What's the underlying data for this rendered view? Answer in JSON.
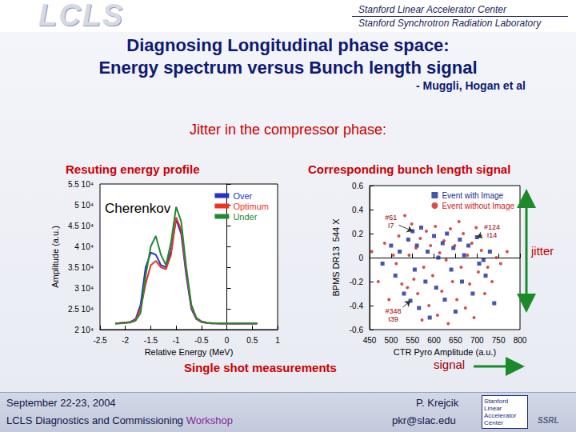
{
  "header": {
    "logo": "LCLS",
    "institution_1": "Stanford Linear Accelerator Center",
    "institution_2": "Stanford Synchrotron Radiation Laboratory"
  },
  "title_lines": [
    "Diagnosing Longitudinal phase space:",
    "Energy spectrum versus Bunch length signal"
  ],
  "authors": "- Muggli, Hogan et al",
  "subtitle": "Jitter in the compressor phase:",
  "notes": {
    "jitter": "jitter",
    "signal": "signal",
    "single_shot": "Single shot measurements"
  },
  "footer": {
    "date": "September 22-23, 2004",
    "event": "LCLS Diagnostics and Commissioning",
    "event_highlight": "Workshop",
    "author": "P. Krejcik",
    "email": "pkr@slac.edu",
    "logo_1": "Stanford Linear Accelerator Center",
    "logo_2": "SSRL"
  },
  "chart_data": [
    {
      "type": "line",
      "title": "Resuting energy profile",
      "annotation": "Cherenkov",
      "x_label": "Relative Energy (MeV)",
      "y_label": "Amplitude (a.u.)",
      "xlim": [
        -2.5,
        1
      ],
      "xticks": [
        -2.5,
        -2,
        -1.5,
        -1,
        -0.5,
        0,
        0.5,
        1
      ],
      "ylim": [
        20000,
        55000
      ],
      "yticks": [
        {
          "value": 20000,
          "label": "2 10⁴"
        },
        {
          "value": 25000,
          "label": "2.5 10⁴"
        },
        {
          "value": 30000,
          "label": "3 10⁴"
        },
        {
          "value": 35000,
          "label": "3.5 10⁴"
        },
        {
          "value": 40000,
          "label": "4 10⁴"
        },
        {
          "value": 45000,
          "label": "4.5 10⁴"
        },
        {
          "value": 50000,
          "label": "5 10⁴"
        },
        {
          "value": 55000,
          "label": "5.5 10⁴"
        }
      ],
      "grid": false,
      "legend": "upper right",
      "x": [
        -2.2,
        -2.1,
        -2.0,
        -1.9,
        -1.8,
        -1.7,
        -1.6,
        -1.5,
        -1.4,
        -1.3,
        -1.2,
        -1.1,
        -1.0,
        -0.9,
        -0.8,
        -0.7,
        -0.6,
        -0.5,
        -0.4,
        -0.3,
        -0.2,
        -0.1,
        0.0,
        0.1,
        0.2,
        0.3,
        0.4,
        0.5,
        0.6
      ],
      "series": [
        {
          "name": "Over",
          "color": "#2233cc",
          "line_style": "solid",
          "values": [
            21500,
            21600,
            21700,
            21900,
            22500,
            26000,
            35000,
            38500,
            38000,
            35500,
            35000,
            39000,
            46500,
            43000,
            33000,
            25000,
            22500,
            21800,
            21600,
            21500,
            21500,
            21400,
            21500,
            21500,
            21400,
            21500,
            21500,
            21400,
            21500
          ]
        },
        {
          "name": "Optimum",
          "color": "#ee3322",
          "line_style": "solid",
          "values": [
            21500,
            21600,
            21700,
            21800,
            22300,
            25000,
            31000,
            35500,
            36500,
            35000,
            34500,
            38000,
            47000,
            44000,
            34000,
            25500,
            22600,
            21900,
            21600,
            21500,
            21500,
            21500,
            21400,
            21500,
            21500,
            21400,
            21500,
            21500,
            21400
          ]
        },
        {
          "name": "Under",
          "color": "#228833",
          "line_style": "solid",
          "values": [
            21400,
            21500,
            21600,
            21700,
            22100,
            24000,
            33000,
            40000,
            42500,
            38000,
            35500,
            41000,
            49500,
            46000,
            35000,
            26000,
            22800,
            22000,
            21700,
            21600,
            21500,
            21500,
            21500,
            21400,
            21500,
            21500,
            21400,
            21500,
            21500
          ]
        }
      ]
    },
    {
      "type": "scatter",
      "title": "Corresponding bunch length signal",
      "x_label": "CTR Pyro Amplitude (a.u.)",
      "y_label": "BPMS DR13  544 X",
      "xlim": [
        450,
        800
      ],
      "xticks": [
        450,
        500,
        550,
        600,
        650,
        700,
        750,
        800
      ],
      "ylim": [
        -0.6,
        0.6
      ],
      "yticks": [
        -0.6,
        -0.4,
        -0.2,
        0,
        0.2,
        0.4,
        0.6
      ],
      "grid": false,
      "legend": "upper right",
      "series": [
        {
          "name": "Event with Image",
          "color": "#1a2a99",
          "marker": "square",
          "x": [
            480,
            500,
            510,
            520,
            530,
            540,
            545,
            550,
            555,
            560,
            565,
            570,
            580,
            585,
            590,
            600,
            605,
            610,
            620,
            625,
            630,
            640,
            645,
            650,
            660,
            665,
            670,
            680,
            690,
            700,
            705,
            715,
            720,
            730,
            740
          ],
          "values": [
            -0.05,
            0.1,
            -0.15,
            0.05,
            -0.3,
            0.15,
            -0.36,
            0.22,
            -0.1,
            0.1,
            -0.42,
            0.25,
            -0.2,
            0.05,
            -0.5,
            0.18,
            -0.25,
            0,
            0.12,
            -0.35,
            0.2,
            -0.1,
            0.08,
            -0.45,
            0.15,
            -0.2,
            0.02,
            0.1,
            -0.3,
            0.17,
            -0.05,
            -0.02,
            -0.15,
            0.05,
            -0.38
          ]
        },
        {
          "name": "Event without Image",
          "color": "#cc2222",
          "marker": "circle",
          "x": [
            455,
            470,
            485,
            495,
            505,
            512,
            518,
            525,
            532,
            538,
            542,
            548,
            553,
            558,
            562,
            568,
            572,
            576,
            582,
            588,
            592,
            597,
            603,
            608,
            613,
            618,
            623,
            628,
            633,
            638,
            643,
            648,
            653,
            658,
            663,
            668,
            673,
            678,
            683,
            688,
            693,
            698,
            703,
            710,
            718,
            725,
            735,
            745,
            755,
            770
          ],
          "values": [
            0.05,
            -0.2,
            0.12,
            -0.35,
            0.02,
            -0.05,
            0.18,
            -0.22,
            0.35,
            -0.25,
            0.02,
            0.28,
            -0.18,
            0.08,
            -0.3,
            0.16,
            -0.52,
            -0.08,
            0.22,
            -0.4,
            0.1,
            -0.15,
            0.26,
            -0.48,
            0.04,
            -0.28,
            0.14,
            -0.02,
            -0.55,
            0.24,
            -0.2,
            0.1,
            -0.35,
            0.3,
            -0.08,
            0.2,
            -0.42,
            0.02,
            -0.22,
            0.12,
            -0.5,
            0.25,
            -0.12,
            0.06,
            -0.3,
            -0.08,
            -0.2,
            0.0,
            -0.05,
            0.05
          ]
        }
      ],
      "annotations": [
        {
          "text": "#61\nI7",
          "x": 500,
          "y": 0.3,
          "point_x": 550,
          "point_y": 0.22
        },
        {
          "text": "#124\nI14",
          "x": 735,
          "y": 0.22,
          "point_x": 700,
          "point_y": 0.17
        },
        {
          "text": "#348\nI39",
          "x": 505,
          "y": -0.48,
          "point_x": 545,
          "point_y": -0.36
        }
      ]
    }
  ]
}
